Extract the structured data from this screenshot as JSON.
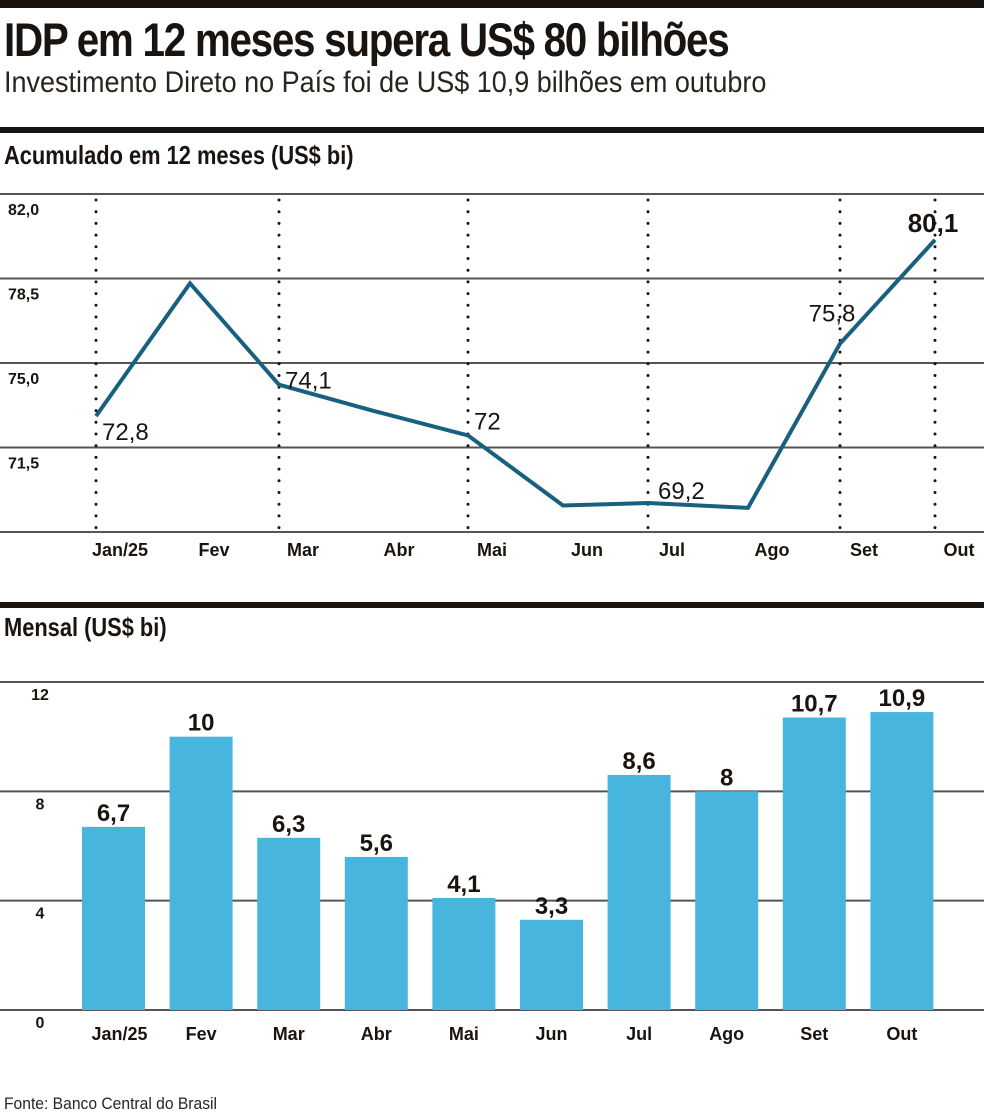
{
  "header": {
    "title": "IDP em 12 meses supera US$ 80 bilhões",
    "subtitle": "Investimento Direto no País foi de US$ 10,9 bilhões em outubro"
  },
  "source": "Fonte: Banco Central do Brasil",
  "chart_data": [
    {
      "type": "line",
      "title": "Acumulado em 12 meses (US$ bi)",
      "xlabel": "",
      "ylabel": "",
      "categories": [
        "Jan/25",
        "Fev",
        "Mar",
        "Abr",
        "Mai",
        "Jun",
        "Jul",
        "Ago",
        "Set",
        "Out"
      ],
      "values": [
        72.8,
        78.3,
        74.1,
        73.0,
        72.0,
        69.1,
        69.2,
        69.0,
        75.8,
        80.1
      ],
      "values_estimated": [
        false,
        true,
        false,
        true,
        false,
        true,
        false,
        true,
        false,
        false
      ],
      "labels": [
        {
          "category": "Jan/25",
          "text": "72,8",
          "bold": false
        },
        {
          "category": "Mar",
          "text": "74,1",
          "bold": false
        },
        {
          "category": "Mai",
          "text": "72",
          "bold": false
        },
        {
          "category": "Jul",
          "text": "69,2",
          "bold": false
        },
        {
          "category": "Set",
          "text": "75,8",
          "bold": false
        },
        {
          "category": "Out",
          "text": "80,1",
          "bold": true
        }
      ],
      "yticks": [
        {
          "value": 82.0,
          "label": "82,0"
        },
        {
          "value": 78.5,
          "label": "78,5"
        },
        {
          "value": 75.0,
          "label": "75,0"
        },
        {
          "value": 71.5,
          "label": "71,5"
        }
      ],
      "ylim": [
        68.0,
        82.0
      ],
      "dotted_gridline_categories": [
        "Jan/25",
        "Mar",
        "Mai",
        "Jul",
        "Set",
        "Out"
      ],
      "grid": true,
      "line_color": "#17607f"
    },
    {
      "type": "bar",
      "title": "Mensal (US$ bi)",
      "xlabel": "",
      "ylabel": "",
      "categories": [
        "Jan/25",
        "Fev",
        "Mar",
        "Abr",
        "Mai",
        "Jun",
        "Jul",
        "Ago",
        "Set",
        "Out"
      ],
      "values": [
        6.7,
        10,
        6.3,
        5.6,
        4.1,
        3.3,
        8.6,
        8,
        10.7,
        10.9
      ],
      "value_labels": [
        "6,7",
        "10",
        "6,3",
        "5,6",
        "4,1",
        "3,3",
        "8,6",
        "8",
        "10,7",
        "10,9"
      ],
      "yticks": [
        {
          "value": 12,
          "label": "12"
        },
        {
          "value": 8,
          "label": "8"
        },
        {
          "value": 4,
          "label": "4"
        },
        {
          "value": 0,
          "label": "0"
        }
      ],
      "ylim": [
        0,
        12
      ],
      "grid": true,
      "bar_color": "#47b5de"
    }
  ]
}
